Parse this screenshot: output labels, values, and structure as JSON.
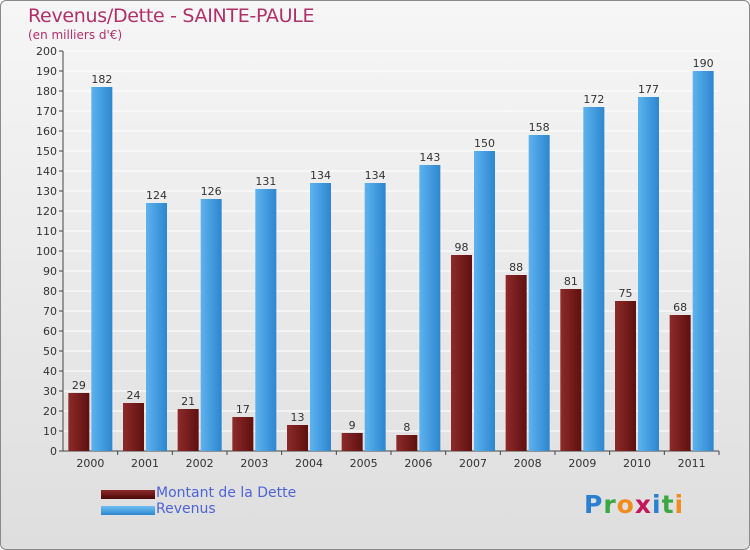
{
  "chart_data": {
    "type": "bar",
    "title": "Revenus/Dette - SAINTE-PAULE",
    "subtitle": "(en milliers d'€)",
    "xlabel": "",
    "ylabel": "",
    "ylim": [
      0,
      200
    ],
    "yticks": [
      "0",
      "10",
      "20",
      "30",
      "40",
      "50",
      "60",
      "70",
      "80",
      "90",
      "100",
      "110",
      "120",
      "130",
      "140",
      "150",
      "160",
      "170",
      "180",
      "190",
      "200"
    ],
    "grid": true,
    "legend_position": "bottom-left",
    "categories": [
      "2000",
      "2001",
      "2002",
      "2003",
      "2004",
      "2005",
      "2006",
      "2007",
      "2008",
      "2009",
      "2010",
      "2011"
    ],
    "series": [
      {
        "name": "Montant de la Dette",
        "color": "#7e2222",
        "values": [
          29,
          24,
          21,
          17,
          13,
          9,
          8,
          98,
          88,
          81,
          75,
          68
        ],
        "labels": [
          "29",
          "24",
          "21",
          "17",
          "13",
          "9",
          "8",
          "98",
          "88",
          "81",
          "75",
          "68"
        ]
      },
      {
        "name": "Revenus",
        "color": "#4aa3e2",
        "values": [
          182,
          124,
          126,
          131,
          134,
          134,
          143,
          150,
          158,
          172,
          177,
          190
        ],
        "labels": [
          "182",
          "124",
          "126",
          "131",
          "134",
          "134",
          "143",
          "150",
          "158",
          "172",
          "177",
          "190"
        ]
      }
    ]
  },
  "logo": {
    "letters": [
      "P",
      "r",
      "o",
      "x",
      "i",
      "t",
      "i"
    ],
    "colors": [
      "#2b7fd1",
      "#3ba845",
      "#f28c1e",
      "#c2185b",
      "#2b7fd1",
      "#3ba845",
      "#f28c1e"
    ]
  }
}
